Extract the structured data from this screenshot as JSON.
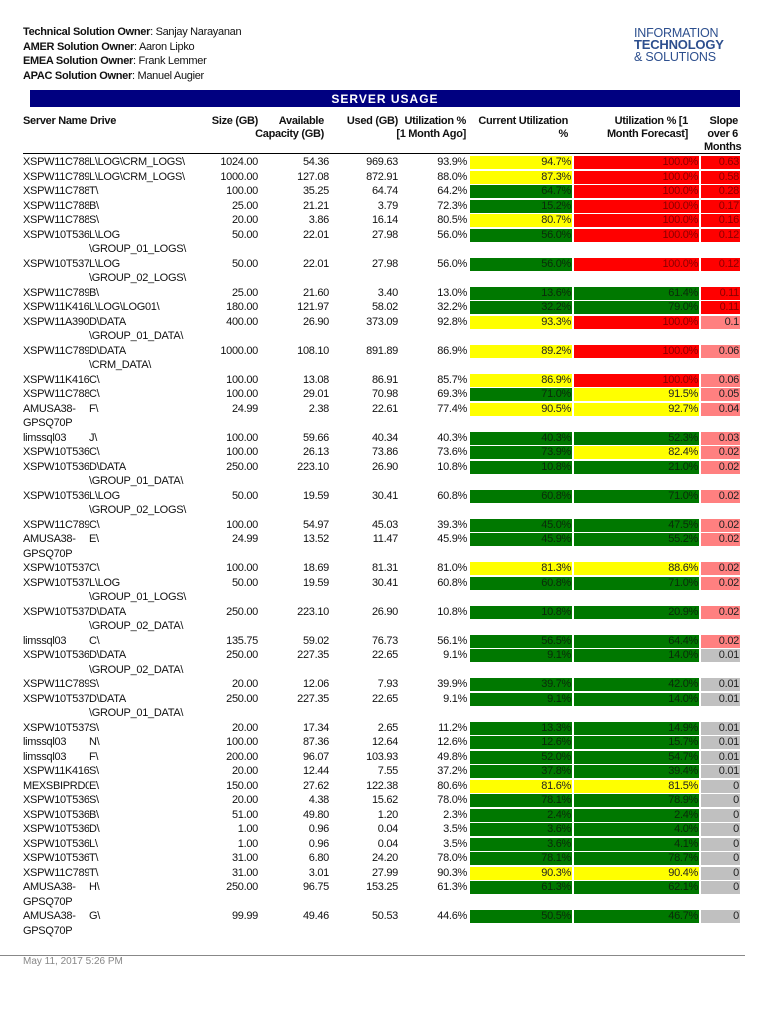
{
  "owners": [
    {
      "label": "Technical Solution Owner",
      "name": "Sanjay Narayanan"
    },
    {
      "label": "AMER Solution Owner",
      "name": "Aaron Lipko"
    },
    {
      "label": "EMEA Solution Owner",
      "name": "Frank Lemmer"
    },
    {
      "label": "APAC Solution Owner",
      "name": "Manuel Augier"
    }
  ],
  "logo": {
    "line1": "INFORMATION",
    "line2": "TECHNOLOGY",
    "line3": "& SOLUTIONS"
  },
  "title": "SERVER USAGE",
  "columns": {
    "server": "Server Name",
    "drive": "Drive",
    "size": "Size (GB)",
    "available": "Available Capacity (GB)",
    "used": "Used (GB)",
    "util_prev": "Utilization % [1 Month Ago]",
    "current": "Current Utilization %",
    "forecast": "Utilization % [1 Month Forecast]",
    "slope": "Slope over 6 Months"
  },
  "colors": {
    "green": "#007800",
    "yellow": "#ffff00",
    "red": "#ff0000",
    "pink": "#ff8080",
    "gray": "#c0c0c0",
    "title_bar": "#000080"
  },
  "rows": [
    {
      "server": "XSPW11C788",
      "drive": "L\\LOG\\CRM_LOGS\\",
      "size": "1024.00",
      "available": "54.36",
      "used": "969.63",
      "util_prev": "93.9%",
      "current": "94.7%",
      "current_color": "yellow",
      "forecast": "100.0%",
      "forecast_color": "red",
      "slope": "0.63",
      "slope_color": "red"
    },
    {
      "server": "XSPW11C789",
      "drive": "L\\LOG\\CRM_LOGS\\",
      "size": "1000.00",
      "available": "127.08",
      "used": "872.91",
      "util_prev": "88.0%",
      "current": "87.3%",
      "current_color": "yellow",
      "forecast": "100.0%",
      "forecast_color": "red",
      "slope": "0.58",
      "slope_color": "red"
    },
    {
      "server": "XSPW11C788",
      "drive": "T\\",
      "size": "100.00",
      "available": "35.25",
      "used": "64.74",
      "util_prev": "64.2%",
      "current": "64.7%",
      "current_color": "green",
      "forecast": "100.0%",
      "forecast_color": "red",
      "slope": "0.28",
      "slope_color": "red"
    },
    {
      "server": "XSPW11C788",
      "drive": "B\\",
      "size": "25.00",
      "available": "21.21",
      "used": "3.79",
      "util_prev": "72.3%",
      "current": "15.2%",
      "current_color": "green",
      "forecast": "100.0%",
      "forecast_color": "red",
      "slope": "0.17",
      "slope_color": "red"
    },
    {
      "server": "XSPW11C788",
      "drive": "S\\",
      "size": "20.00",
      "available": "3.86",
      "used": "16.14",
      "util_prev": "80.5%",
      "current": "80.7%",
      "current_color": "yellow",
      "forecast": "100.0%",
      "forecast_color": "red",
      "slope": "0.16",
      "slope_color": "red"
    },
    {
      "server": "XSPW10T536",
      "drive": "L\\LOG\n\\GROUP_01_LOGS\\",
      "size": "50.00",
      "available": "22.01",
      "used": "27.98",
      "util_prev": "56.0%",
      "current": "56.0%",
      "current_color": "green",
      "forecast": "100.0%",
      "forecast_color": "red",
      "slope": "0.12",
      "slope_color": "red"
    },
    {
      "server": "XSPW10T537",
      "drive": "L\\LOG\n\\GROUP_02_LOGS\\",
      "size": "50.00",
      "available": "22.01",
      "used": "27.98",
      "util_prev": "56.0%",
      "current": "56.0%",
      "current_color": "green",
      "forecast": "100.0%",
      "forecast_color": "red",
      "slope": "0.12",
      "slope_color": "red"
    },
    {
      "server": "XSPW11C789",
      "drive": "B\\",
      "size": "25.00",
      "available": "21.60",
      "used": "3.40",
      "util_prev": "13.0%",
      "current": "13.6%",
      "current_color": "green",
      "forecast": "61.4%",
      "forecast_color": "green",
      "slope": "0.11",
      "slope_color": "red"
    },
    {
      "server": "XSPW11K416",
      "drive": "L\\LOG\\LOG01\\",
      "size": "180.00",
      "available": "121.97",
      "used": "58.02",
      "util_prev": "32.2%",
      "current": "32.2%",
      "current_color": "green",
      "forecast": "79.0%",
      "forecast_color": "green",
      "slope": "0.11",
      "slope_color": "red"
    },
    {
      "server": "XSPW11A390",
      "drive": "D\\DATA\n\\GROUP_01_DATA\\",
      "size": "400.00",
      "available": "26.90",
      "used": "373.09",
      "util_prev": "92.8%",
      "current": "93.3%",
      "current_color": "yellow",
      "forecast": "100.0%",
      "forecast_color": "red",
      "slope": "0.1",
      "slope_color": "pink"
    },
    {
      "server": "XSPW11C789",
      "drive": "D\\DATA\n\\CRM_DATA\\",
      "size": "1000.00",
      "available": "108.10",
      "used": "891.89",
      "util_prev": "86.9%",
      "current": "89.2%",
      "current_color": "yellow",
      "forecast": "100.0%",
      "forecast_color": "red",
      "slope": "0.06",
      "slope_color": "pink"
    },
    {
      "server": "XSPW11K416",
      "drive": "C\\",
      "size": "100.00",
      "available": "13.08",
      "used": "86.91",
      "util_prev": "85.7%",
      "current": "86.9%",
      "current_color": "yellow",
      "forecast": "100.0%",
      "forecast_color": "red",
      "slope": "0.06",
      "slope_color": "pink"
    },
    {
      "server": "XSPW11C788",
      "drive": "C\\",
      "size": "100.00",
      "available": "29.01",
      "used": "70.98",
      "util_prev": "69.3%",
      "current": "71.0%",
      "current_color": "green",
      "forecast": "91.5%",
      "forecast_color": "yellow",
      "slope": "0.05",
      "slope_color": "pink"
    },
    {
      "server": "AMUSA38-GPSQ70P",
      "drive": "F\\",
      "size": "24.99",
      "available": "2.38",
      "used": "22.61",
      "util_prev": "77.4%",
      "current": "90.5%",
      "current_color": "yellow",
      "forecast": "92.7%",
      "forecast_color": "yellow",
      "slope": "0.04",
      "slope_color": "pink"
    },
    {
      "server": "limssql03",
      "drive": "J\\",
      "size": "100.00",
      "available": "59.66",
      "used": "40.34",
      "util_prev": "40.3%",
      "current": "40.3%",
      "current_color": "green",
      "forecast": "52.3%",
      "forecast_color": "green",
      "slope": "0.03",
      "slope_color": "pink"
    },
    {
      "server": "XSPW10T536",
      "drive": "C\\",
      "size": "100.00",
      "available": "26.13",
      "used": "73.86",
      "util_prev": "73.6%",
      "current": "73.9%",
      "current_color": "green",
      "forecast": "82.4%",
      "forecast_color": "yellow",
      "slope": "0.02",
      "slope_color": "pink"
    },
    {
      "server": "XSPW10T536",
      "drive": "D\\DATA\n\\GROUP_01_DATA\\",
      "size": "250.00",
      "available": "223.10",
      "used": "26.90",
      "util_prev": "10.8%",
      "current": "10.8%",
      "current_color": "green",
      "forecast": "21.0%",
      "forecast_color": "green",
      "slope": "0.02",
      "slope_color": "pink"
    },
    {
      "server": "XSPW10T536",
      "drive": "L\\LOG\n\\GROUP_02_LOGS\\",
      "size": "50.00",
      "available": "19.59",
      "used": "30.41",
      "util_prev": "60.8%",
      "current": "60.8%",
      "current_color": "green",
      "forecast": "71.0%",
      "forecast_color": "green",
      "slope": "0.02",
      "slope_color": "pink"
    },
    {
      "server": "XSPW11C789",
      "drive": "C\\",
      "size": "100.00",
      "available": "54.97",
      "used": "45.03",
      "util_prev": "39.3%",
      "current": "45.0%",
      "current_color": "green",
      "forecast": "47.5%",
      "forecast_color": "green",
      "slope": "0.02",
      "slope_color": "pink"
    },
    {
      "server": "AMUSA38-GPSQ70P",
      "drive": "E\\",
      "size": "24.99",
      "available": "13.52",
      "used": "11.47",
      "util_prev": "45.9%",
      "current": "45.9%",
      "current_color": "green",
      "forecast": "55.2%",
      "forecast_color": "green",
      "slope": "0.02",
      "slope_color": "pink"
    },
    {
      "server": "XSPW10T537",
      "drive": "C\\",
      "size": "100.00",
      "available": "18.69",
      "used": "81.31",
      "util_prev": "81.0%",
      "current": "81.3%",
      "current_color": "yellow",
      "forecast": "88.6%",
      "forecast_color": "yellow",
      "slope": "0.02",
      "slope_color": "pink"
    },
    {
      "server": "XSPW10T537",
      "drive": "L\\LOG\n\\GROUP_01_LOGS\\",
      "size": "50.00",
      "available": "19.59",
      "used": "30.41",
      "util_prev": "60.8%",
      "current": "60.8%",
      "current_color": "green",
      "forecast": "71.0%",
      "forecast_color": "green",
      "slope": "0.02",
      "slope_color": "pink"
    },
    {
      "server": "XSPW10T537",
      "drive": "D\\DATA\n\\GROUP_02_DATA\\",
      "size": "250.00",
      "available": "223.10",
      "used": "26.90",
      "util_prev": "10.8%",
      "current": "10.8%",
      "current_color": "green",
      "forecast": "20.9%",
      "forecast_color": "green",
      "slope": "0.02",
      "slope_color": "pink"
    },
    {
      "server": "limssql03",
      "drive": "C\\",
      "size": "135.75",
      "available": "59.02",
      "used": "76.73",
      "util_prev": "56.1%",
      "current": "56.5%",
      "current_color": "green",
      "forecast": "64.4%",
      "forecast_color": "green",
      "slope": "0.02",
      "slope_color": "pink"
    },
    {
      "server": "XSPW10T536",
      "drive": "D\\DATA\n\\GROUP_02_DATA\\",
      "size": "250.00",
      "available": "227.35",
      "used": "22.65",
      "util_prev": "9.1%",
      "current": "9.1%",
      "current_color": "green",
      "forecast": "14.0%",
      "forecast_color": "green",
      "slope": "0.01",
      "slope_color": "gray"
    },
    {
      "server": "XSPW11C789",
      "drive": "S\\",
      "size": "20.00",
      "available": "12.06",
      "used": "7.93",
      "util_prev": "39.9%",
      "current": "39.7%",
      "current_color": "green",
      "forecast": "42.0%",
      "forecast_color": "green",
      "slope": "0.01",
      "slope_color": "gray"
    },
    {
      "server": "XSPW10T537",
      "drive": "D\\DATA\n\\GROUP_01_DATA\\",
      "size": "250.00",
      "available": "227.35",
      "used": "22.65",
      "util_prev": "9.1%",
      "current": "9.1%",
      "current_color": "green",
      "forecast": "14.0%",
      "forecast_color": "green",
      "slope": "0.01",
      "slope_color": "gray"
    },
    {
      "server": "XSPW10T537",
      "drive": "S\\",
      "size": "20.00",
      "available": "17.34",
      "used": "2.65",
      "util_prev": "11.2%",
      "current": "13.3%",
      "current_color": "green",
      "forecast": "14.9%",
      "forecast_color": "green",
      "slope": "0.01",
      "slope_color": "gray"
    },
    {
      "server": "limssql03",
      "drive": "N\\",
      "size": "100.00",
      "available": "87.36",
      "used": "12.64",
      "util_prev": "12.6%",
      "current": "12.6%",
      "current_color": "green",
      "forecast": "15.7%",
      "forecast_color": "green",
      "slope": "0.01",
      "slope_color": "gray"
    },
    {
      "server": "limssql03",
      "drive": "F\\",
      "size": "200.00",
      "available": "96.07",
      "used": "103.93",
      "util_prev": "49.8%",
      "current": "52.0%",
      "current_color": "green",
      "forecast": "54.7%",
      "forecast_color": "green",
      "slope": "0.01",
      "slope_color": "gray"
    },
    {
      "server": "XSPW11K416",
      "drive": "S\\",
      "size": "20.00",
      "available": "12.44",
      "used": "7.55",
      "util_prev": "37.2%",
      "current": "37.8%",
      "current_color": "green",
      "forecast": "39.4%",
      "forecast_color": "green",
      "slope": "0.01",
      "slope_color": "gray"
    },
    {
      "server": "MEXSBIPRD0",
      "drive": "E\\",
      "size": "150.00",
      "available": "27.62",
      "used": "122.38",
      "util_prev": "80.6%",
      "current": "81.6%",
      "current_color": "yellow",
      "forecast": "81.5%",
      "forecast_color": "yellow",
      "slope": "0",
      "slope_color": "gray"
    },
    {
      "server": "XSPW10T536",
      "drive": "S\\",
      "size": "20.00",
      "available": "4.38",
      "used": "15.62",
      "util_prev": "78.0%",
      "current": "78.1%",
      "current_color": "green",
      "forecast": "78.9%",
      "forecast_color": "green",
      "slope": "0",
      "slope_color": "gray"
    },
    {
      "server": "XSPW10T536",
      "drive": "B\\",
      "size": "51.00",
      "available": "49.80",
      "used": "1.20",
      "util_prev": "2.3%",
      "current": "2.4%",
      "current_color": "green",
      "forecast": "2.4%",
      "forecast_color": "green",
      "slope": "0",
      "slope_color": "gray"
    },
    {
      "server": "XSPW10T536",
      "drive": "D\\",
      "size": "1.00",
      "available": "0.96",
      "used": "0.04",
      "util_prev": "3.5%",
      "current": "3.6%",
      "current_color": "green",
      "forecast": "4.0%",
      "forecast_color": "green",
      "slope": "0",
      "slope_color": "gray"
    },
    {
      "server": "XSPW10T536",
      "drive": "L\\",
      "size": "1.00",
      "available": "0.96",
      "used": "0.04",
      "util_prev": "3.5%",
      "current": "3.6%",
      "current_color": "green",
      "forecast": "4.1%",
      "forecast_color": "green",
      "slope": "0",
      "slope_color": "gray"
    },
    {
      "server": "XSPW10T536",
      "drive": "T\\",
      "size": "31.00",
      "available": "6.80",
      "used": "24.20",
      "util_prev": "78.0%",
      "current": "78.1%",
      "current_color": "green",
      "forecast": "78.7%",
      "forecast_color": "green",
      "slope": "0",
      "slope_color": "gray"
    },
    {
      "server": "XSPW11C789",
      "drive": "T\\",
      "size": "31.00",
      "available": "3.01",
      "used": "27.99",
      "util_prev": "90.3%",
      "current": "90.3%",
      "current_color": "yellow",
      "forecast": "90.4%",
      "forecast_color": "yellow",
      "slope": "0",
      "slope_color": "gray"
    },
    {
      "server": "AMUSA38-GPSQ70P",
      "drive": "H\\",
      "size": "250.00",
      "available": "96.75",
      "used": "153.25",
      "util_prev": "61.3%",
      "current": "61.3%",
      "current_color": "green",
      "forecast": "62.1%",
      "forecast_color": "green",
      "slope": "0",
      "slope_color": "gray"
    },
    {
      "server": "AMUSA38-GPSQ70P",
      "drive": "G\\",
      "size": "99.99",
      "available": "49.46",
      "used": "50.53",
      "util_prev": "44.6%",
      "current": "50.5%",
      "current_color": "green",
      "forecast": "46.7%",
      "forecast_color": "green",
      "slope": "0",
      "slope_color": "gray"
    }
  ],
  "footer": {
    "timestamp": "May 11, 2017 5:26 PM"
  }
}
